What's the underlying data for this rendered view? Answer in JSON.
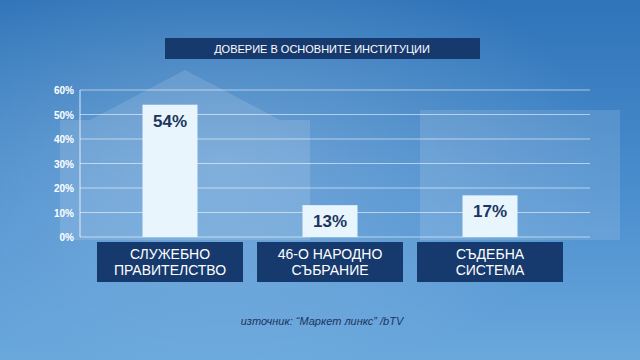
{
  "chart_data": {
    "type": "bar",
    "title": "ДОВЕРИЕ В ОСНОВНИТЕ ИНСТИТУЦИИ",
    "categories": [
      "СЛУЖЕБНО\nПРАВИТЕЛСТВО",
      "46-О НАРОДНО\nСЪБРАНИЕ",
      "СЪДЕБНА\nСИСТЕМА"
    ],
    "values": [
      54,
      13,
      17
    ],
    "value_labels": [
      "54%",
      "13%",
      "17%"
    ],
    "data_labels": true,
    "color": "#e9f5fc",
    "ylim": [
      0,
      60
    ],
    "yticks": [
      {
        "value": 0,
        "label": "0%"
      },
      {
        "value": 10,
        "label": "10%"
      },
      {
        "value": 20,
        "label": "20%"
      },
      {
        "value": 30,
        "label": "30%"
      },
      {
        "value": 40,
        "label": "40%"
      },
      {
        "value": 50,
        "label": "50%"
      },
      {
        "value": 60,
        "label": "60%"
      }
    ],
    "grid": true,
    "source": "източник: “Маркет линкс” /bTV"
  }
}
